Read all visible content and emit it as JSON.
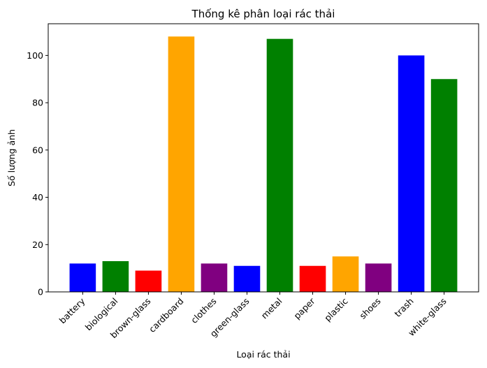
{
  "chart_data": {
    "type": "bar",
    "title": "Thống kê phân loại rác thải",
    "xlabel": "Loại rác thải",
    "ylabel": "Số lượng ảnh",
    "categories": [
      "battery",
      "biological",
      "brown-glass",
      "cardboard",
      "clothes",
      "green-glass",
      "metal",
      "paper",
      "plastic",
      "shoes",
      "trash",
      "white-glass"
    ],
    "values": [
      12,
      13,
      9,
      108,
      12,
      11,
      107,
      11,
      15,
      12,
      100,
      90
    ],
    "colors": [
      "#0000ff",
      "#008000",
      "#ff0000",
      "#ffa500",
      "#800080",
      "#0000ff",
      "#008000",
      "#ff0000",
      "#ffa500",
      "#800080",
      "#0000ff",
      "#008000"
    ],
    "yticks": [
      0,
      20,
      40,
      60,
      80,
      100
    ],
    "ylim": [
      0,
      113.4
    ],
    "grid": false,
    "legend": "none"
  }
}
